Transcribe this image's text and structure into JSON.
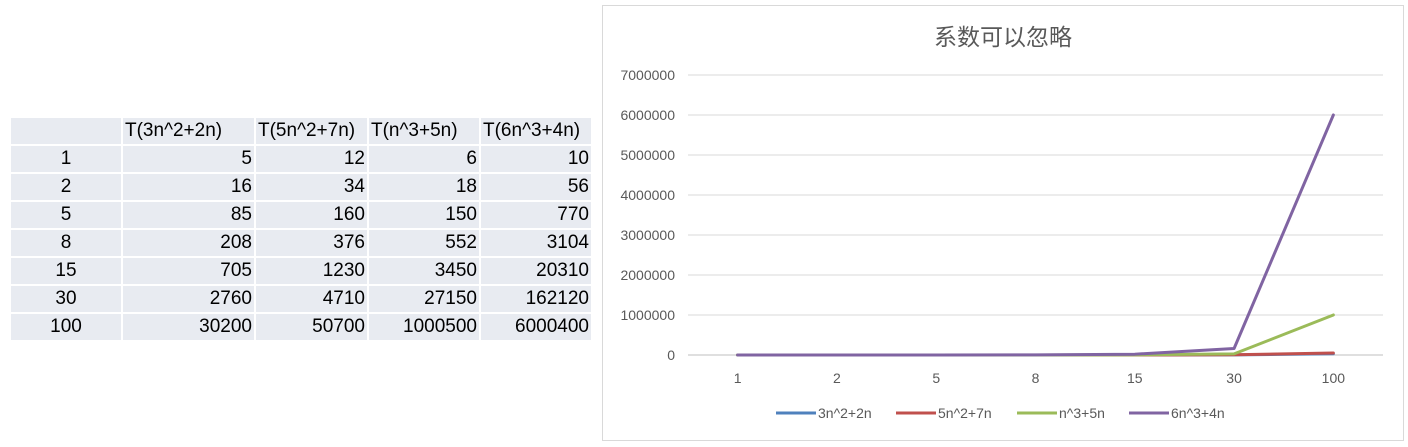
{
  "table": {
    "headers": [
      "",
      "T(3n^2+2n)",
      "T(5n^2+7n)",
      "T(n^3+5n)",
      "T(6n^3+4n)"
    ],
    "rows": [
      [
        "1",
        "5",
        "12",
        "6",
        "10"
      ],
      [
        "2",
        "16",
        "34",
        "18",
        "56"
      ],
      [
        "5",
        "85",
        "160",
        "150",
        "770"
      ],
      [
        "8",
        "208",
        "376",
        "552",
        "3104"
      ],
      [
        "15",
        "705",
        "1230",
        "3450",
        "20310"
      ],
      [
        "30",
        "2760",
        "4710",
        "27150",
        "162120"
      ],
      [
        "100",
        "30200",
        "50700",
        "1000500",
        "6000400"
      ]
    ]
  },
  "chart_data": {
    "type": "line",
    "title": "系数可以忽略",
    "categories": [
      "1",
      "2",
      "5",
      "8",
      "15",
      "30",
      "100"
    ],
    "ylim": [
      0,
      7000000
    ],
    "yticks": [
      0,
      1000000,
      2000000,
      3000000,
      4000000,
      5000000,
      6000000,
      7000000
    ],
    "ytick_labels": [
      "0",
      "1000000",
      "2000000",
      "3000000",
      "4000000",
      "5000000",
      "6000000",
      "7000000"
    ],
    "grid": true,
    "legend_position": "bottom",
    "series": [
      {
        "name": "3n^2+2n",
        "color": "#4f81bd",
        "values": [
          5,
          16,
          85,
          208,
          705,
          2760,
          30200
        ]
      },
      {
        "name": "5n^2+7n",
        "color": "#c0504d",
        "values": [
          12,
          34,
          160,
          376,
          1230,
          4710,
          50700
        ]
      },
      {
        "name": "n^3+5n",
        "color": "#9bbb59",
        "values": [
          6,
          18,
          150,
          552,
          3450,
          27150,
          1000500
        ]
      },
      {
        "name": "6n^3+4n",
        "color": "#8064a2",
        "values": [
          10,
          56,
          770,
          3104,
          20310,
          162120,
          6000400
        ]
      }
    ]
  }
}
